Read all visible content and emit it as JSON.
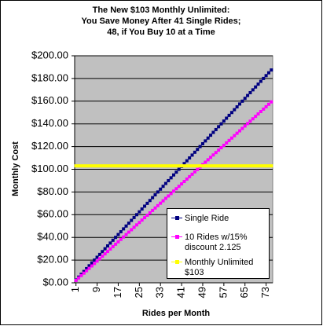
{
  "chart_data": {
    "type": "line",
    "title": [
      "The New $103 Monthly Unlimited:",
      "You Save Money After 41 Single Rides;",
      "48, if You Buy 10 at a Time"
    ],
    "x_label": "Rides per Month",
    "y_label": "Monthly Cost",
    "x": [
      1,
      2,
      3,
      4,
      5,
      6,
      7,
      8,
      9,
      10,
      11,
      12,
      13,
      14,
      15,
      16,
      17,
      18,
      19,
      20,
      21,
      22,
      23,
      24,
      25,
      26,
      27,
      28,
      29,
      30,
      31,
      32,
      33,
      34,
      35,
      36,
      37,
      38,
      39,
      40,
      41,
      42,
      43,
      44,
      45,
      46,
      47,
      48,
      49,
      50,
      51,
      52,
      53,
      54,
      55,
      56,
      57,
      58,
      59,
      60,
      61,
      62,
      63,
      64,
      65,
      66,
      67,
      68,
      69,
      70,
      71,
      72,
      73,
      74,
      75
    ],
    "xlim": [
      0.5,
      75.5
    ],
    "xticks": [
      1,
      9,
      17,
      25,
      33,
      41,
      49,
      57,
      65,
      73
    ],
    "ylim": [
      0,
      200
    ],
    "yticks": [
      {
        "value": 0,
        "label": "$0.00"
      },
      {
        "value": 20,
        "label": "$20.00"
      },
      {
        "value": 40,
        "label": "$40.00"
      },
      {
        "value": 60,
        "label": "$60.00"
      },
      {
        "value": 80,
        "label": "$80.00"
      },
      {
        "value": 100,
        "label": "$100.00"
      },
      {
        "value": 120,
        "label": "$120.00"
      },
      {
        "value": 140,
        "label": "$140.00"
      },
      {
        "value": 160,
        "label": "$160.00"
      },
      {
        "value": 180,
        "label": "$180.00"
      },
      {
        "value": 200,
        "label": "$200.00"
      }
    ],
    "grid": true,
    "legend": "lower right",
    "series": [
      {
        "name": "Single Ride",
        "color": "#000080",
        "values": [
          2.5,
          5,
          7.5,
          10,
          12.5,
          15,
          17.5,
          20,
          22.5,
          25,
          27.5,
          30,
          32.5,
          35,
          37.5,
          40,
          42.5,
          45,
          47.5,
          50,
          52.5,
          55,
          57.5,
          60,
          62.5,
          65,
          67.5,
          70,
          72.5,
          75,
          77.5,
          80,
          82.5,
          85,
          87.5,
          90,
          92.5,
          95,
          97.5,
          100,
          102.5,
          105,
          107.5,
          110,
          112.5,
          115,
          117.5,
          120,
          122.5,
          125,
          127.5,
          130,
          132.5,
          135,
          137.5,
          140,
          142.5,
          145,
          147.5,
          150,
          152.5,
          155,
          157.5,
          160,
          162.5,
          165,
          167.5,
          170,
          172.5,
          175,
          177.5,
          180,
          182.5,
          185,
          187.5
        ]
      },
      {
        "name": "10 Rides w/15% discount 2.125",
        "color": "#ff00ff",
        "values": [
          2.125,
          4.25,
          6.375,
          8.5,
          10.625,
          12.75,
          14.875,
          17,
          19.125,
          21.25,
          23.375,
          25.5,
          27.625,
          29.75,
          31.875,
          34,
          36.125,
          38.25,
          40.375,
          42.5,
          44.625,
          46.75,
          48.875,
          51,
          53.125,
          55.25,
          57.375,
          59.5,
          61.625,
          63.75,
          65.875,
          68,
          70.125,
          72.25,
          74.375,
          76.5,
          78.625,
          80.75,
          82.875,
          85,
          87.125,
          89.25,
          91.375,
          93.5,
          95.625,
          97.75,
          99.875,
          102,
          104.125,
          106.25,
          108.375,
          110.5,
          112.625,
          114.75,
          116.875,
          119,
          121.125,
          123.25,
          125.375,
          127.5,
          129.625,
          131.75,
          133.875,
          136,
          138.125,
          140.25,
          142.375,
          144.5,
          146.625,
          148.75,
          150.875,
          153,
          155.125,
          157.25,
          159.375
        ]
      },
      {
        "name": "Monthly Unlimited $103",
        "color": "#ffff00",
        "values": [
          103,
          103,
          103,
          103,
          103,
          103,
          103,
          103,
          103,
          103,
          103,
          103,
          103,
          103,
          103,
          103,
          103,
          103,
          103,
          103,
          103,
          103,
          103,
          103,
          103,
          103,
          103,
          103,
          103,
          103,
          103,
          103,
          103,
          103,
          103,
          103,
          103,
          103,
          103,
          103,
          103,
          103,
          103,
          103,
          103,
          103,
          103,
          103,
          103,
          103,
          103,
          103,
          103,
          103,
          103,
          103,
          103,
          103,
          103,
          103,
          103,
          103,
          103,
          103,
          103,
          103,
          103,
          103,
          103,
          103,
          103,
          103,
          103,
          103,
          103
        ]
      }
    ]
  }
}
